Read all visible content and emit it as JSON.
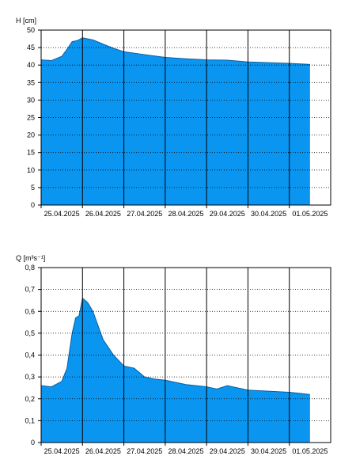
{
  "chart_data": [
    {
      "type": "area",
      "ylabel": "H [cm]",
      "ylim": [
        0,
        50
      ],
      "yticks": [
        0,
        5,
        10,
        15,
        20,
        25,
        30,
        35,
        40,
        45,
        50
      ],
      "x_start": "25.04.2025 00:00",
      "x_end": "01.05.2025 24:00",
      "xtick_labels": [
        "25.04.2025",
        "26.04.2025",
        "27.04.2025",
        "28.04.2025",
        "29.04.2025",
        "30.04.2025",
        "01.05.2025"
      ],
      "grid": true,
      "fill_color": "#0a96f0",
      "series": [
        {
          "x": [
            "25.04.2025 00:00",
            "25.04.2025 06:00",
            "25.04.2025 12:00",
            "25.04.2025 15:00",
            "25.04.2025 18:00",
            "25.04.2025 21:00",
            "26.04.2025 00:00",
            "26.04.2025 06:00",
            "26.04.2025 12:00",
            "26.04.2025 18:00",
            "27.04.2025 00:00",
            "27.04.2025 12:00",
            "28.04.2025 00:00",
            "28.04.2025 12:00",
            "29.04.2025 00:00",
            "29.04.2025 12:00",
            "30.04.2025 00:00",
            "30.04.2025 12:00",
            "01.05.2025 00:00",
            "01.05.2025 12:00"
          ],
          "y": [
            41.5,
            41.3,
            42.5,
            44.5,
            46.7,
            47,
            47.8,
            47.2,
            46,
            44.8,
            43.8,
            43,
            42.2,
            41.8,
            41.5,
            41.4,
            40.9,
            40.7,
            40.5,
            40.2
          ]
        }
      ]
    },
    {
      "type": "area",
      "ylabel": "Q [m³s⁻¹]",
      "ylim": [
        0,
        0.8
      ],
      "yticks": [
        "0",
        "0,1",
        "0,2",
        "0,3",
        "0,4",
        "0,5",
        "0,6",
        "0,7",
        "0,8"
      ],
      "x_start": "25.04.2025 00:00",
      "x_end": "01.05.2025 24:00",
      "xtick_labels": [
        "25.04.2025",
        "26.04.2025",
        "27.04.2025",
        "28.04.2025",
        "29.04.2025",
        "30.04.2025",
        "01.05.2025"
      ],
      "grid": true,
      "fill_color": "#0a96f0",
      "series": [
        {
          "x": [
            "25.04.2025 00:00",
            "25.04.2025 06:00",
            "25.04.2025 12:00",
            "25.04.2025 15:00",
            "25.04.2025 18:00",
            "25.04.2025 20:00",
            "25.04.2025 22:00",
            "26.04.2025 00:00",
            "26.04.2025 03:00",
            "26.04.2025 06:00",
            "26.04.2025 12:00",
            "26.04.2025 18:00",
            "27.04.2025 00:00",
            "27.04.2025 06:00",
            "27.04.2025 12:00",
            "27.04.2025 18:00",
            "28.04.2025 00:00",
            "28.04.2025 12:00",
            "29.04.2025 00:00",
            "29.04.2025 06:00",
            "29.04.2025 12:00",
            "30.04.2025 00:00",
            "30.04.2025 12:00",
            "01.05.2025 00:00",
            "01.05.2025 12:00"
          ],
          "y": [
            0.26,
            0.255,
            0.28,
            0.34,
            0.5,
            0.57,
            0.58,
            0.66,
            0.64,
            0.6,
            0.47,
            0.4,
            0.35,
            0.34,
            0.3,
            0.29,
            0.285,
            0.265,
            0.255,
            0.245,
            0.26,
            0.24,
            0.235,
            0.23,
            0.22
          ]
        }
      ]
    }
  ]
}
